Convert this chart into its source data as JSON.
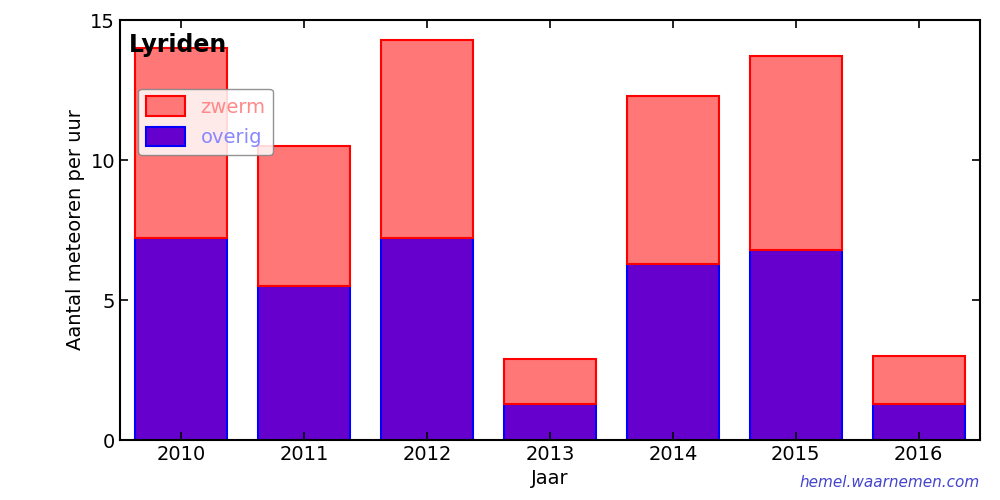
{
  "years": [
    2010,
    2011,
    2012,
    2013,
    2014,
    2015,
    2016
  ],
  "overig": [
    7.2,
    5.5,
    7.2,
    1.3,
    6.3,
    6.8,
    1.3
  ],
  "zwerm": [
    6.8,
    5.0,
    7.1,
    1.6,
    6.0,
    6.9,
    1.7
  ],
  "overig_color": "#6600cc",
  "zwerm_color": "#ff7777",
  "overig_edge": "#0000ff",
  "zwerm_edge": "#ff0000",
  "overig_text_color": "#8888ff",
  "zwerm_text_color": "#ff8888",
  "title": "Lyriden",
  "xlabel": "Jaar",
  "ylabel": "Aantal meteoren per uur",
  "ylim": [
    0,
    15
  ],
  "yticks": [
    0,
    5,
    10,
    15
  ],
  "legend_zwerm": "zwerm",
  "legend_overig": "overig",
  "watermark": "hemel.waarnemen.com",
  "watermark_color": "#4444cc",
  "bar_width": 0.75,
  "background_color": "#ffffff",
  "title_fontsize": 17,
  "label_fontsize": 14,
  "tick_fontsize": 14,
  "legend_fontsize": 14
}
